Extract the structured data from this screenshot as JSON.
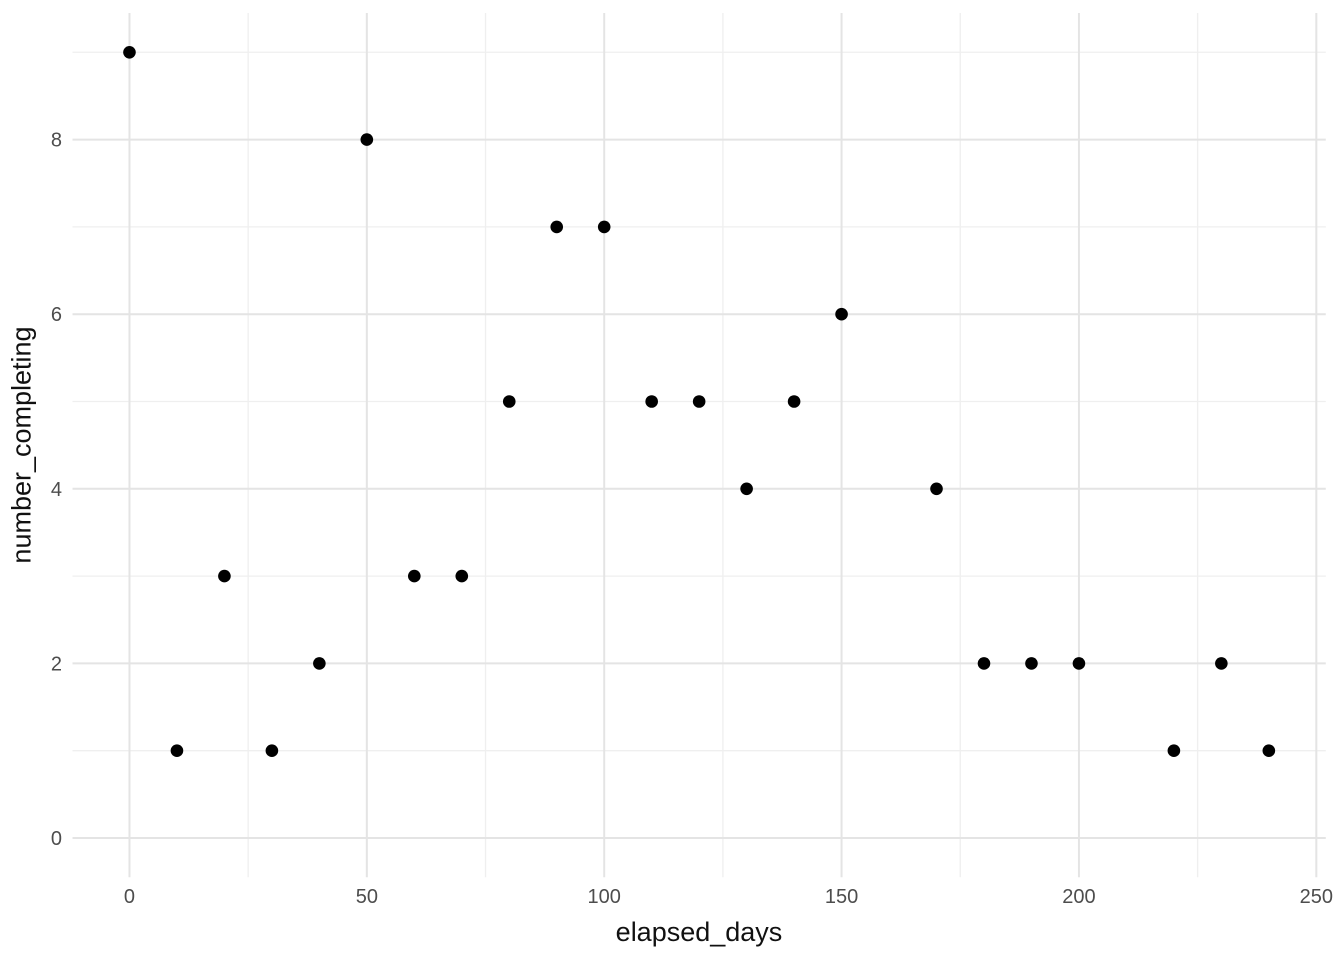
{
  "chart_data": {
    "type": "scatter",
    "title": "",
    "xlabel": "elapsed_days",
    "ylabel": "number_completing",
    "points": [
      [
        0,
        9
      ],
      [
        10,
        1
      ],
      [
        20,
        3
      ],
      [
        30,
        1
      ],
      [
        40,
        2
      ],
      [
        50,
        8
      ],
      [
        60,
        3
      ],
      [
        70,
        3
      ],
      [
        80,
        5
      ],
      [
        90,
        7
      ],
      [
        100,
        7
      ],
      [
        110,
        5
      ],
      [
        120,
        5
      ],
      [
        130,
        4
      ],
      [
        140,
        5
      ],
      [
        150,
        6
      ],
      [
        170,
        4
      ],
      [
        180,
        2
      ],
      [
        190,
        2
      ],
      [
        200,
        2
      ],
      [
        220,
        1
      ],
      [
        230,
        2
      ],
      [
        240,
        1
      ]
    ],
    "xlim": [
      -12,
      252
    ],
    "ylim": [
      -0.45,
      9.45
    ],
    "x_major_ticks": [
      0,
      50,
      100,
      150,
      200,
      250
    ],
    "x_tick_labels": [
      "0",
      "50",
      "100",
      "150",
      "200",
      "250"
    ],
    "x_minor_ticks": [
      25,
      75,
      125,
      175,
      225
    ],
    "y_major_ticks": [
      0,
      2,
      4,
      6,
      8
    ],
    "y_tick_labels": [
      "0",
      "2",
      "4",
      "6",
      "8"
    ],
    "y_minor_ticks": [
      1,
      3,
      5,
      7,
      9
    ],
    "grid": "major+minor",
    "legend": "none",
    "colors": {
      "background": "#ffffff",
      "point": "#000000",
      "grid_major": "#e4e4e4",
      "grid_minor": "#efefef",
      "tick_label": "#4d4d4d",
      "axis_title": "#111111"
    }
  }
}
